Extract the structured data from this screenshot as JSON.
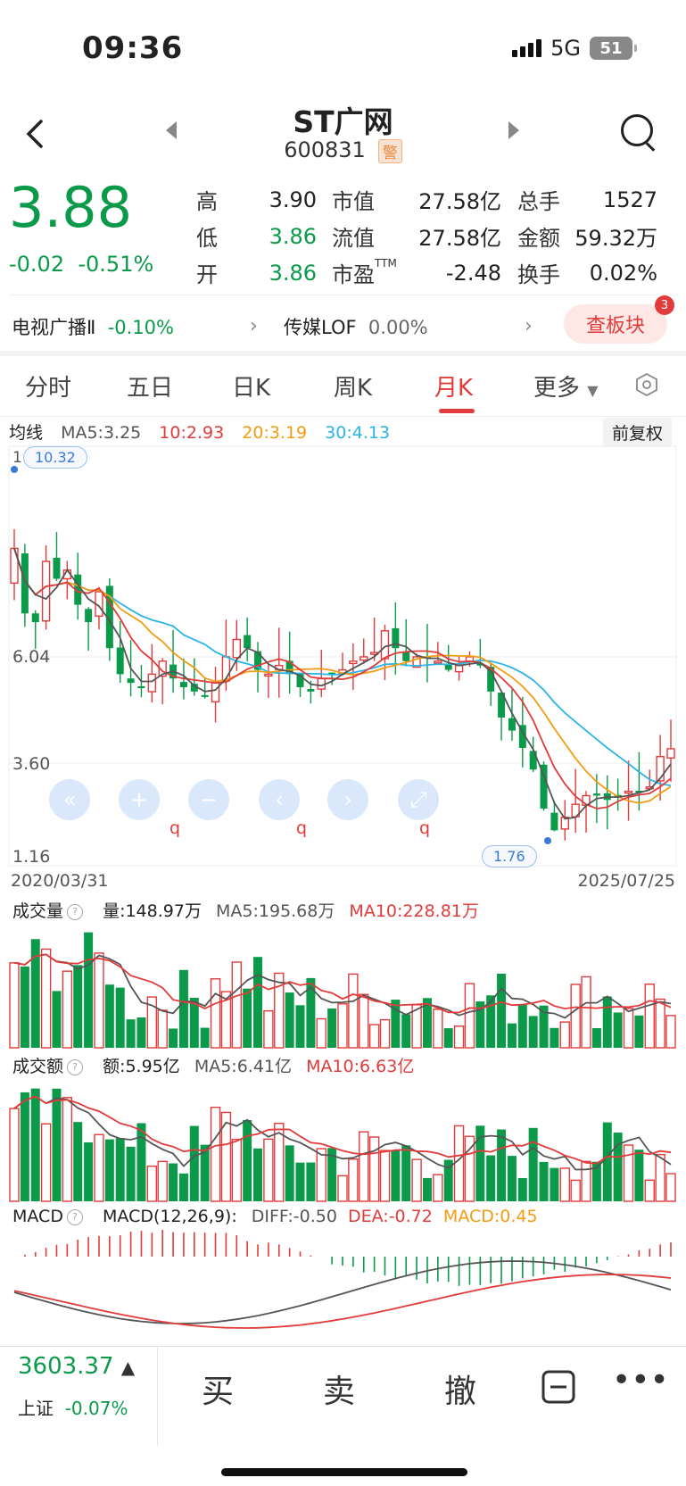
{
  "status": {
    "time": "09:36",
    "network": "5G",
    "battery": "51"
  },
  "header": {
    "title": "ST广网",
    "code": "600831",
    "warn": "警"
  },
  "quote": {
    "price": "3.88",
    "change": "-0.02",
    "change_pct": "-0.51%",
    "rows": [
      {
        "k1": "高",
        "v1": "3.90",
        "k2": "市值",
        "v2": "27.58亿",
        "k3": "总手",
        "v3": "1527"
      },
      {
        "k1": "低",
        "v1": "3.86",
        "k2": "流值",
        "v2": "27.58亿",
        "k3": "金额",
        "v3": "59.32万"
      },
      {
        "k1": "开",
        "v1": "3.86",
        "k2": "市盈",
        "k2sup": "TTM",
        "v2": "-2.48",
        "k3": "换手",
        "v3": "0.02%"
      }
    ]
  },
  "sectors": {
    "s1_name": "电视广播Ⅱ",
    "s1_pct": "-0.10%",
    "s2_name": "传媒LOF",
    "s2_pct": "0.00%",
    "plate_btn": "查板块",
    "plate_badge": "3"
  },
  "tabs": [
    "分时",
    "五日",
    "日K",
    "周K",
    "月K",
    "更多"
  ],
  "active_tab": "月K",
  "ma": {
    "label": "均线",
    "ma5": "MA5:3.25",
    "ma10": "10:2.93",
    "ma20": "20:3.19",
    "ma30": "30:4.13",
    "adjust": "前复权"
  },
  "kchart": {
    "y_labels": [
      "1",
      "6.04",
      "3.60",
      "1.16"
    ],
    "high_label": "10.32",
    "low_label": "1.76",
    "date_start": "2020/03/31",
    "date_end": "2025/07/25",
    "q_marks": [
      "q",
      "q",
      "q"
    ]
  },
  "volume": {
    "title": "成交量",
    "val": "量:148.97万",
    "ma5": "MA5:195.68万",
    "ma10": "MA10:228.81万"
  },
  "amount": {
    "title": "成交额",
    "val": "额:5.95亿",
    "ma5": "MA5:6.41亿",
    "ma10": "MA10:6.63亿"
  },
  "macd": {
    "title": "MACD",
    "params": "MACD(12,26,9):",
    "diff": "DIFF:-0.50",
    "dea": "DEA:-0.72",
    "macd": "MACD:0.45"
  },
  "bottom": {
    "index_value": "3603.37",
    "index_name": "上证",
    "index_pct": "-0.07%",
    "buy": "买",
    "sell": "卖",
    "cancel": "撤"
  },
  "colors": {
    "up": "#e23b3b",
    "down": "#0a9a4a",
    "ma5": "#555555",
    "ma10": "#e23b3b",
    "ma20": "#f39c12",
    "ma30": "#2bb4e6"
  },
  "chart_data": {
    "type": "candlestick",
    "x_range": [
      "2020/03/31",
      "2025/07/25"
    ],
    "close": [
      8.5,
      7.0,
      6.8,
      8.2,
      7.8,
      8.0,
      7.2,
      6.8,
      7.5,
      6.2,
      5.6,
      5.4,
      5.3,
      5.6,
      5.9,
      5.5,
      5.3,
      5.2,
      5.1,
      5.4,
      6.0,
      6.4,
      6.2,
      5.7,
      5.6,
      5.8,
      5.6,
      5.3,
      5.2,
      5.5,
      5.6,
      5.7,
      5.9,
      6.0,
      6.1,
      6.6,
      6.2,
      5.9,
      6.0,
      6.0,
      5.9,
      5.7,
      5.8,
      6.0,
      5.8,
      5.2,
      4.6,
      4.3,
      3.9,
      3.4,
      2.5,
      2.0,
      2.3,
      2.6,
      2.8,
      2.8,
      2.7,
      2.8,
      2.9,
      2.9,
      3.0,
      3.7,
      3.88
    ],
    "high": 10.32,
    "low": 1.76,
    "ma": {
      "MA5": 3.25,
      "MA10": 2.93,
      "MA20": 3.19,
      "MA30": 4.13
    }
  }
}
